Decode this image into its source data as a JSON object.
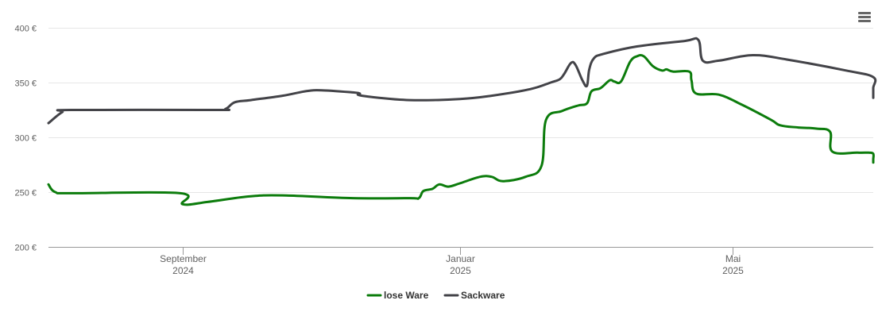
{
  "chart_data": {
    "type": "line",
    "y_ticks": [
      "200 €",
      "250 €",
      "300 €",
      "350 €",
      "400 €"
    ],
    "ylim": [
      200,
      400
    ],
    "y_tick_values": [
      200,
      250,
      300,
      350,
      400
    ],
    "x_ticks": [
      {
        "month": "September",
        "year": "2024",
        "date": "2024-09-01"
      },
      {
        "month": "Januar",
        "year": "2025",
        "date": "2025-01-01"
      },
      {
        "month": "Mai",
        "year": "2025",
        "date": "2025-05-01"
      }
    ],
    "xlim": [
      "2024-07-04",
      "2025-07-02"
    ],
    "grid": true,
    "legend_position": "bottom-center",
    "series": [
      {
        "name": "lose Ware",
        "color": "#0c7c0c",
        "points": [
          [
            "2024-07-04",
            257
          ],
          [
            "2024-07-07",
            250
          ],
          [
            "2024-07-15",
            249
          ],
          [
            "2024-08-31",
            249
          ],
          [
            "2024-09-01",
            239
          ],
          [
            "2024-09-12",
            241
          ],
          [
            "2024-09-30",
            246
          ],
          [
            "2024-10-15",
            247
          ],
          [
            "2024-11-15",
            244.5
          ],
          [
            "2024-12-10",
            244.5
          ],
          [
            "2024-12-14",
            244.5
          ],
          [
            "2024-12-16",
            251
          ],
          [
            "2024-12-20",
            253
          ],
          [
            "2024-12-23",
            257
          ],
          [
            "2024-12-27",
            255
          ],
          [
            "2025-01-01",
            258
          ],
          [
            "2025-01-10",
            264
          ],
          [
            "2025-01-15",
            264
          ],
          [
            "2025-01-20",
            260
          ],
          [
            "2025-01-30",
            264
          ],
          [
            "2025-02-06",
            274
          ],
          [
            "2025-02-08",
            316
          ],
          [
            "2025-02-15",
            324
          ],
          [
            "2025-02-22",
            329
          ],
          [
            "2025-02-26",
            331
          ],
          [
            "2025-02-28",
            342
          ],
          [
            "2025-03-04",
            345
          ],
          [
            "2025-03-08",
            352
          ],
          [
            "2025-03-10",
            351
          ],
          [
            "2025-03-13",
            351
          ],
          [
            "2025-03-17",
            369
          ],
          [
            "2025-03-20",
            374
          ],
          [
            "2025-03-23",
            374
          ],
          [
            "2025-03-27",
            365
          ],
          [
            "2025-03-31",
            361
          ],
          [
            "2025-04-02",
            362
          ],
          [
            "2025-04-05",
            360
          ],
          [
            "2025-04-12",
            360
          ],
          [
            "2025-04-13",
            352
          ],
          [
            "2025-04-15",
            340
          ],
          [
            "2025-04-25",
            339
          ],
          [
            "2025-05-05",
            330
          ],
          [
            "2025-05-18",
            316
          ],
          [
            "2025-05-22",
            311
          ],
          [
            "2025-05-30",
            309
          ],
          [
            "2025-06-07",
            308
          ],
          [
            "2025-06-13",
            305
          ],
          [
            "2025-06-14",
            287
          ],
          [
            "2025-06-25",
            286
          ],
          [
            "2025-06-30",
            286
          ],
          [
            "2025-07-10",
            285
          ],
          [
            "2025-07-20",
            280
          ],
          [
            "2025-07-30",
            277
          ],
          [
            "2025-06-29",
            276
          ]
        ]
      },
      {
        "name": "Sackware",
        "color": "#434348",
        "points": [
          [
            "2024-07-04",
            313
          ],
          [
            "2024-07-10",
            323
          ],
          [
            "2024-07-14",
            325
          ],
          [
            "2024-09-15",
            325
          ],
          [
            "2024-09-20",
            326
          ],
          [
            "2024-09-24",
            332
          ],
          [
            "2024-10-01",
            334
          ],
          [
            "2024-10-15",
            338
          ],
          [
            "2024-10-25",
            342
          ],
          [
            "2024-11-01",
            343
          ],
          [
            "2024-11-15",
            341
          ],
          [
            "2024-11-18",
            340
          ],
          [
            "2024-11-19",
            338
          ],
          [
            "2024-12-10",
            334
          ],
          [
            "2025-01-01",
            335
          ],
          [
            "2025-01-15",
            338
          ],
          [
            "2025-02-01",
            344
          ],
          [
            "2025-02-10",
            350
          ],
          [
            "2025-02-14",
            353
          ],
          [
            "2025-02-16",
            358
          ],
          [
            "2025-02-19",
            368
          ],
          [
            "2025-02-21",
            366
          ],
          [
            "2025-02-24",
            352
          ],
          [
            "2025-02-26",
            347
          ],
          [
            "2025-02-27",
            362
          ],
          [
            "2025-03-01",
            372
          ],
          [
            "2025-03-05",
            376
          ],
          [
            "2025-03-20",
            383
          ],
          [
            "2025-04-10",
            388
          ],
          [
            "2025-04-16",
            389
          ],
          [
            "2025-04-18",
            370
          ],
          [
            "2025-04-25",
            370
          ],
          [
            "2025-05-10",
            375
          ],
          [
            "2025-05-25",
            371
          ],
          [
            "2025-06-20",
            361
          ],
          [
            "2025-07-05",
            355
          ],
          [
            "2025-07-25",
            345
          ],
          [
            "2025-08-20",
            336
          ],
          [
            "2025-06-02",
            331
          ]
        ]
      }
    ]
  },
  "menu": {
    "icon": "hamburger-menu-icon"
  }
}
